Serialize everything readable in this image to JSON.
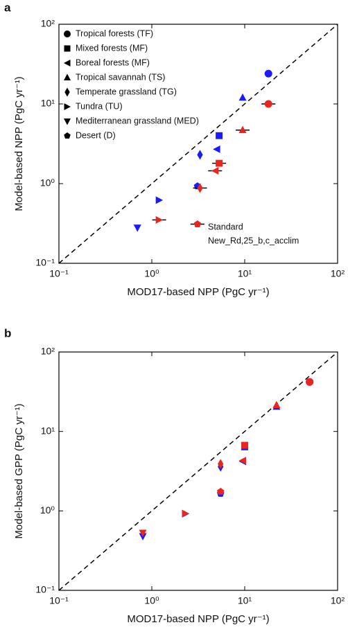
{
  "chart_data": [
    {
      "type": "scatter",
      "panel_label": "a",
      "xlabel": "MOD17-based NPP (PgC yr⁻¹)",
      "ylabel": "Model-based NPP (PgC yr⁻¹)",
      "xlim": [
        0.1,
        100
      ],
      "ylim": [
        0.1,
        100
      ],
      "log_scale": true,
      "diagonal": true,
      "error_bars": true,
      "xticks": [
        {
          "value": 0.1,
          "label": "10⁻¹"
        },
        {
          "value": 1,
          "label": "10⁰"
        },
        {
          "value": 10,
          "label": "10¹"
        },
        {
          "value": 100,
          "label": "10²"
        }
      ],
      "yticks": [
        {
          "value": 0.1,
          "label": "10⁻¹"
        },
        {
          "value": 1,
          "label": "10⁰"
        },
        {
          "value": 10,
          "label": "10¹"
        },
        {
          "value": 100,
          "label": "10²"
        }
      ],
      "categories": [
        "Tropical forests (TF)",
        "Mixed forests (MF)",
        "Boreal forests (MF)",
        "Tropical savannah (TS)",
        "Temperate grassland (TG)",
        "Tundra (TU)",
        "Mediterranean grassland (MED)",
        "Desert (D)"
      ],
      "markers": [
        "circle",
        "square",
        "triangle-left",
        "triangle-up",
        "diamond",
        "triangle-right",
        "triangle-down",
        "pentagon"
      ],
      "series": [
        {
          "name": "Standard",
          "color": "#1a1aff",
          "x": [
            18,
            5.3,
            5.0,
            9.5,
            3.3,
            1.2,
            0.7,
            3.1
          ],
          "values": [
            24,
            4,
            2.7,
            12,
            2.3,
            0.62,
            0.28,
            0.93
          ]
        },
        {
          "name": "New_Rd,25_b,c_acclim",
          "color": "#e8251f",
          "x": [
            18,
            5.3,
            4.8,
            9.5,
            3.3,
            1.2,
            null,
            3.1
          ],
          "values": [
            10,
            1.8,
            1.45,
            4.7,
            0.88,
            0.35,
            null,
            0.31
          ]
        }
      ]
    },
    {
      "type": "scatter",
      "panel_label": "b",
      "xlabel": "MOD17-based NPP (PgC yr⁻¹)",
      "ylabel": "Model-based GPP (PgC yr⁻¹)",
      "xlim": [
        0.1,
        100
      ],
      "ylim": [
        0.1,
        100
      ],
      "log_scale": true,
      "diagonal": true,
      "error_bars": false,
      "xticks": [
        {
          "value": 0.1,
          "label": "10⁻¹"
        },
        {
          "value": 1,
          "label": "10⁰"
        },
        {
          "value": 10,
          "label": "10¹"
        },
        {
          "value": 100,
          "label": "10²"
        }
      ],
      "yticks": [
        {
          "value": 0.1,
          "label": "10⁻¹"
        },
        {
          "value": 1,
          "label": "10⁰"
        },
        {
          "value": 10,
          "label": "10¹"
        },
        {
          "value": 100,
          "label": "10²"
        }
      ],
      "markers": [
        "circle",
        "square",
        "triangle-left",
        "triangle-up",
        "diamond",
        "triangle-right",
        "triangle-down",
        "pentagon"
      ],
      "series": [
        {
          "color": "#1a1aff",
          "x": [
            50,
            10,
            9.5,
            22,
            5.5,
            2.3,
            0.8,
            5.5
          ],
          "values": [
            42,
            6.4,
            4.2,
            20.5,
            3.6,
            0.92,
            0.48,
            1.65
          ]
        },
        {
          "color": "#e8251f",
          "x": [
            50,
            10,
            9.5,
            22,
            5.5,
            2.3,
            0.8,
            5.5
          ],
          "values": [
            42,
            6.7,
            4.3,
            21.5,
            3.9,
            0.93,
            0.53,
            1.75
          ]
        }
      ]
    }
  ]
}
